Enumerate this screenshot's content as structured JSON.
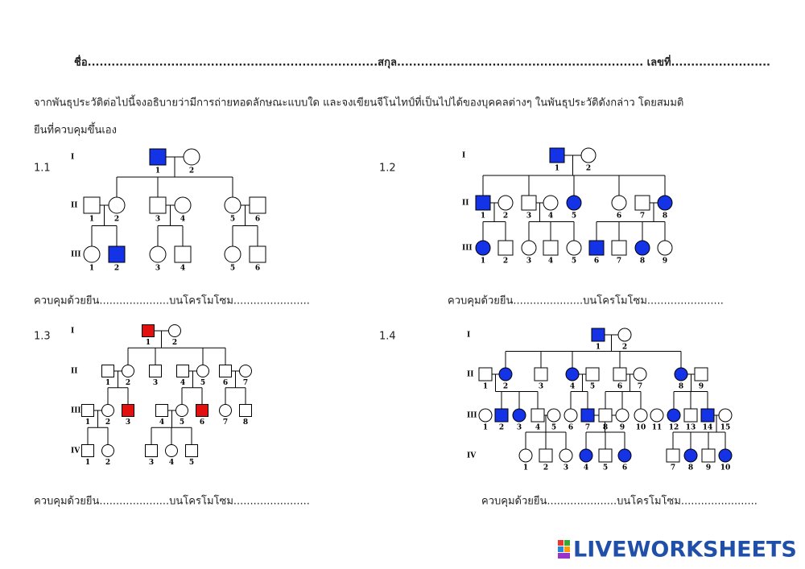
{
  "header": {
    "title": "ชื่อ.........................................................................สกุล.............................................................. เลขที่........................."
  },
  "instructions": [
    "จากพันธุประวัติต่อไปนี้จงอธิบายว่ามีการถ่ายทอดลักษณะแบบใด และจงเขียนจีโนไทป์ที่เป็นไปได้ของบุคคลต่างๆ ในพันธุประวัติดังกล่าว  โดยสมมติ",
    "ยีนที่ควบคุมขึ้นเอง"
  ],
  "pedigrees": [
    {
      "label": "1.1",
      "affected_color": "#1432e6",
      "answer": "ควบคุมด้วยยีน.....................บนโครโมโซม.......................",
      "generations": [
        {
          "label": "I",
          "individuals": [
            1,
            2
          ]
        },
        {
          "label": "II",
          "individuals": [
            1,
            2,
            3,
            4,
            5,
            6
          ]
        },
        {
          "label": "III",
          "individuals": [
            1,
            2,
            3,
            4,
            5,
            6
          ]
        }
      ]
    },
    {
      "label": "1.2",
      "affected_color": "#1432e6",
      "answer": "ควบคุมด้วยยีน.....................บนโครโมโซม.......................",
      "generations": [
        {
          "label": "I",
          "individuals": [
            1,
            2
          ]
        },
        {
          "label": "II",
          "individuals": [
            1,
            2,
            3,
            4,
            5,
            6,
            7,
            8
          ]
        },
        {
          "label": "III",
          "individuals": [
            1,
            2,
            3,
            4,
            5,
            6,
            7,
            8,
            9
          ]
        }
      ]
    },
    {
      "label": "1.3",
      "affected_color": "#e31010",
      "answer": "ควบคุมด้วยยีน.....................บนโครโมโซม.......................",
      "generations": [
        {
          "label": "I",
          "individuals": [
            1,
            2
          ]
        },
        {
          "label": "II",
          "individuals": [
            1,
            2,
            3,
            4,
            5,
            6,
            7
          ]
        },
        {
          "label": "III",
          "individuals": [
            1,
            2,
            3,
            4,
            5,
            6,
            7,
            8
          ]
        },
        {
          "label": "IV",
          "individuals": [
            1,
            2,
            3,
            4,
            5
          ]
        }
      ]
    },
    {
      "label": "1.4",
      "affected_color": "#1432e6",
      "answer": "ควบคุมด้วยยีน.....................บนโครโมโซม.......................",
      "generations": [
        {
          "label": "I",
          "individuals": [
            1,
            2
          ]
        },
        {
          "label": "II",
          "individuals": [
            1,
            2,
            3,
            4,
            5,
            6,
            7,
            8,
            9
          ]
        },
        {
          "label": "III",
          "individuals": [
            1,
            2,
            3,
            4,
            5,
            6,
            7,
            8,
            9,
            10,
            11,
            12,
            13,
            14,
            15
          ]
        },
        {
          "label": "IV",
          "individuals": [
            1,
            2,
            3,
            4,
            5,
            6,
            7,
            8,
            9,
            10
          ]
        }
      ]
    }
  ],
  "footer": {
    "logo": "LIVEWORKSHEETS"
  }
}
